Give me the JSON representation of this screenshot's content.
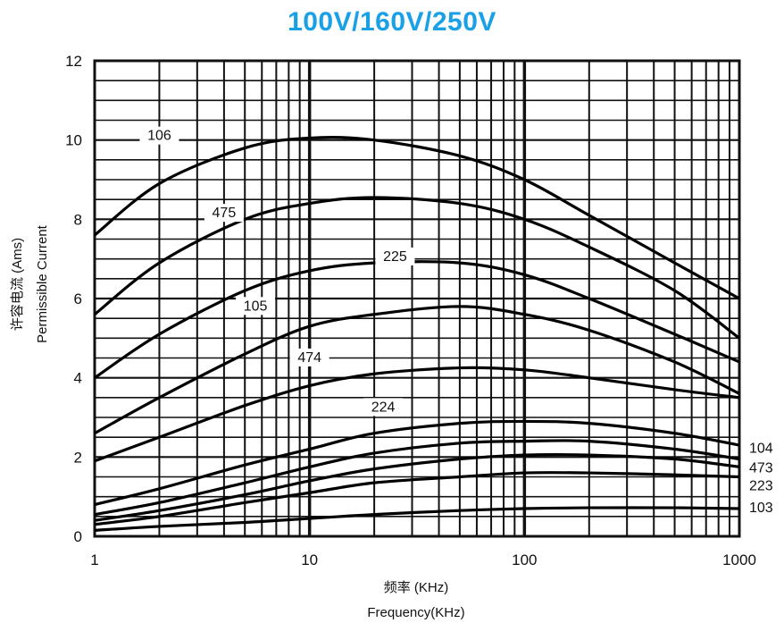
{
  "chart_data": {
    "type": "line",
    "title": "100V/160V/250V",
    "xlabel_cn": "频率 (KHz)",
    "xlabel": "Frequency(KHz)",
    "ylabel_cn": "许容电流 (Ams)",
    "ylabel": "Permissible Current",
    "x_scale": "log",
    "xlim": [
      1,
      1000
    ],
    "ylim": [
      0,
      12
    ],
    "x_ticks": [
      "1",
      "10",
      "100",
      "1000"
    ],
    "y_ticks": [
      "0",
      "2",
      "4",
      "6",
      "8",
      "10",
      "12"
    ],
    "grid": true,
    "series": [
      {
        "name": "106",
        "x": [
          1,
          2,
          5,
          10,
          20,
          50,
          100,
          200,
          500,
          1000
        ],
        "y": [
          7.6,
          8.9,
          9.8,
          10.05,
          10.0,
          9.6,
          9.0,
          8.1,
          6.9,
          6.0
        ]
      },
      {
        "name": "475",
        "x": [
          1,
          2,
          5,
          10,
          20,
          50,
          100,
          200,
          500,
          1000
        ],
        "y": [
          5.6,
          6.9,
          8.0,
          8.4,
          8.55,
          8.4,
          8.0,
          7.3,
          6.2,
          5.0
        ]
      },
      {
        "name": "225",
        "x": [
          1,
          2,
          5,
          10,
          20,
          50,
          100,
          200,
          500,
          1000
        ],
        "y": [
          4.0,
          5.1,
          6.2,
          6.7,
          6.9,
          6.9,
          6.6,
          6.0,
          5.1,
          4.4
        ]
      },
      {
        "name": "105",
        "x": [
          1,
          2,
          5,
          10,
          20,
          50,
          100,
          200,
          500,
          1000
        ],
        "y": [
          2.6,
          3.5,
          4.6,
          5.3,
          5.6,
          5.8,
          5.6,
          5.2,
          4.4,
          3.6
        ]
      },
      {
        "name": "474",
        "x": [
          1,
          2,
          5,
          10,
          20,
          50,
          100,
          200,
          500,
          1000
        ],
        "y": [
          1.9,
          2.5,
          3.3,
          3.8,
          4.1,
          4.25,
          4.2,
          4.0,
          3.7,
          3.5
        ]
      },
      {
        "name": "224",
        "x": [
          1,
          2,
          5,
          10,
          20,
          50,
          100,
          200,
          500,
          1000
        ],
        "y": [
          0.8,
          1.2,
          1.8,
          2.2,
          2.6,
          2.85,
          2.9,
          2.85,
          2.6,
          2.3
        ]
      },
      {
        "name": "104",
        "x": [
          1,
          2,
          5,
          10,
          20,
          50,
          100,
          200,
          500,
          1000
        ],
        "y": [
          0.55,
          0.85,
          1.35,
          1.75,
          2.1,
          2.35,
          2.4,
          2.4,
          2.2,
          1.95
        ]
      },
      {
        "name": "473",
        "x": [
          1,
          2,
          5,
          10,
          20,
          50,
          100,
          200,
          500,
          1000
        ],
        "y": [
          0.4,
          0.65,
          1.05,
          1.4,
          1.7,
          1.95,
          2.05,
          2.05,
          1.95,
          1.75
        ]
      },
      {
        "name": "223",
        "x": [
          1,
          2,
          5,
          10,
          20,
          50,
          100,
          200,
          500,
          1000
        ],
        "y": [
          0.3,
          0.5,
          0.85,
          1.1,
          1.35,
          1.5,
          1.6,
          1.6,
          1.55,
          1.5
        ]
      },
      {
        "name": "103",
        "x": [
          1,
          2,
          5,
          10,
          20,
          50,
          100,
          200,
          500,
          1000
        ],
        "y": [
          0.15,
          0.25,
          0.35,
          0.45,
          0.55,
          0.65,
          0.7,
          0.72,
          0.72,
          0.7
        ]
      }
    ]
  }
}
